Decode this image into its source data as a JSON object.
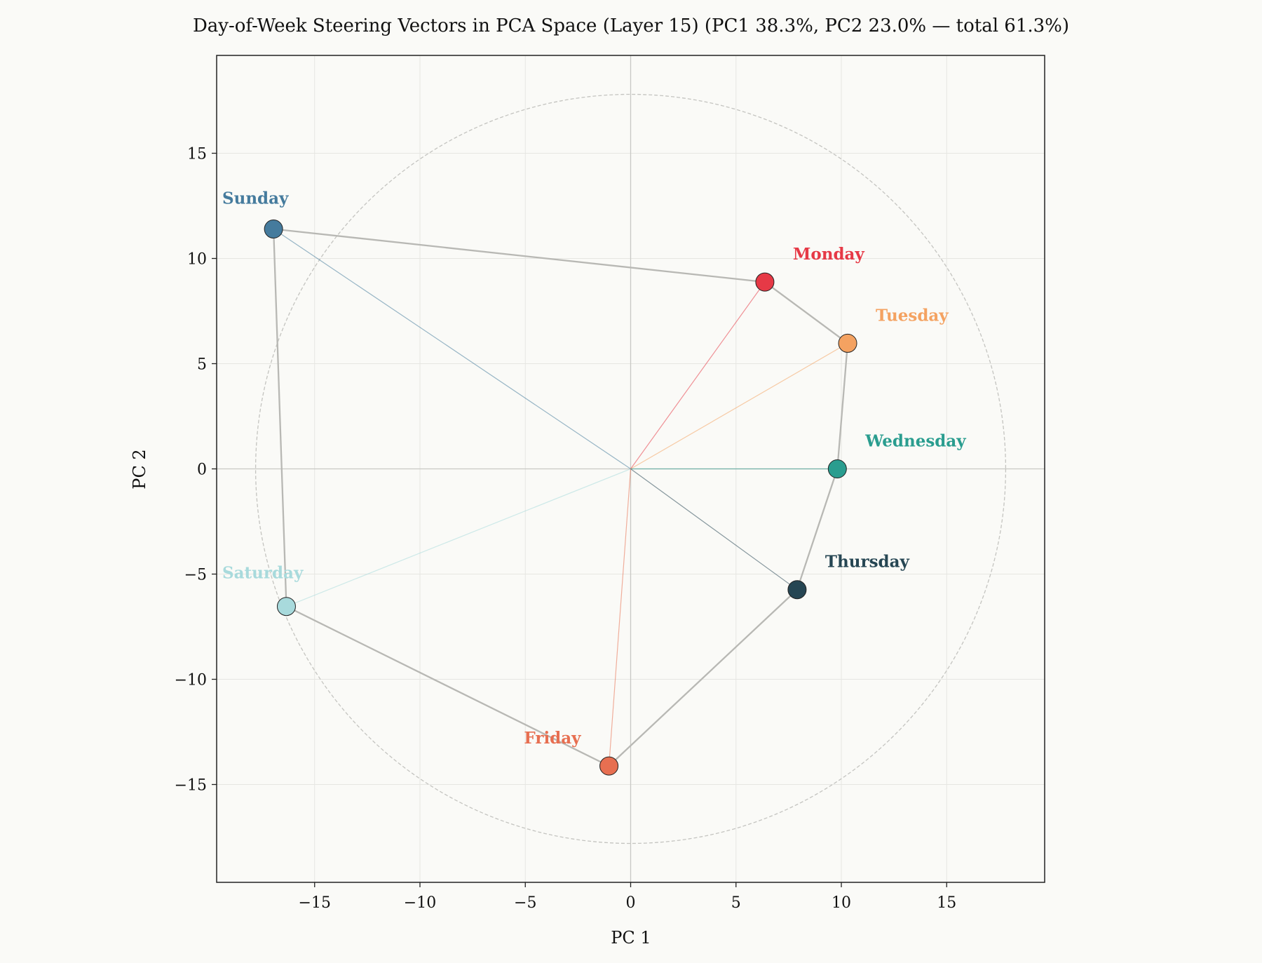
{
  "chart_data": {
    "type": "scatter",
    "title": "Day-of-Week Steering Vectors in PCA Space  (Layer 15)  (PC1 38.3%, PC2 23.0% — total 61.3%)",
    "xlabel": "PC 1",
    "ylabel": "PC 2",
    "xlim": [
      -19.65,
      19.65
    ],
    "ylim": [
      -19.65,
      19.65
    ],
    "xticks": [
      -15,
      -10,
      -5,
      0,
      5,
      10,
      15
    ],
    "yticks": [
      -15,
      -10,
      -5,
      0,
      5,
      10,
      15
    ],
    "xtick_labels": [
      "−15",
      "−10",
      "−5",
      "0",
      "5",
      "10",
      "15"
    ],
    "ytick_labels": [
      "−15",
      "−10",
      "−5",
      "0",
      "5",
      "10",
      "15"
    ],
    "grid": true,
    "reference_circle_radius": 17.8,
    "points": [
      {
        "label": "Monday",
        "x": 6.37,
        "y": 8.88,
        "color": "#e63946"
      },
      {
        "label": "Tuesday",
        "x": 10.3,
        "y": 5.97,
        "color": "#f4a261"
      },
      {
        "label": "Wednesday",
        "x": 9.81,
        "y": 0.0,
        "color": "#2a9d8f"
      },
      {
        "label": "Thursday",
        "x": 7.9,
        "y": -5.74,
        "color": "#264653"
      },
      {
        "label": "Friday",
        "x": -1.03,
        "y": -14.12,
        "color": "#e76f51"
      },
      {
        "label": "Saturday",
        "x": -16.34,
        "y": -6.54,
        "color": "#a8dadc"
      },
      {
        "label": "Sunday",
        "x": -16.95,
        "y": 11.4,
        "color": "#457b9d"
      }
    ]
  }
}
